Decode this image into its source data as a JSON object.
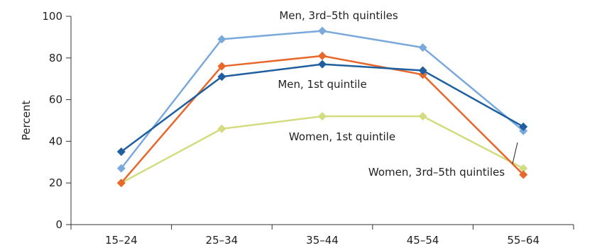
{
  "chart_data": {
    "type": "line",
    "categories": [
      "15–24",
      "25–34",
      "35–44",
      "45–54",
      "55–64"
    ],
    "ylabel": "Percent",
    "xlabel": "",
    "ylim": [
      0,
      100
    ],
    "yticks": [
      0,
      20,
      40,
      60,
      80,
      100
    ],
    "grid": false,
    "legend": "none (series labeled directly on plot)",
    "series": [
      {
        "name": "Men, 3rd–5th quintiles",
        "color": "#7aa9dc",
        "values": [
          27,
          89,
          93,
          85,
          45
        ]
      },
      {
        "name": "Women, 3rd–5th quintiles",
        "color": "#e8672a",
        "values": [
          20,
          76,
          81,
          72,
          24
        ]
      },
      {
        "name": "Men, 1st quintile",
        "color": "#1f5fa0",
        "values": [
          35,
          71,
          77,
          74,
          47
        ]
      },
      {
        "name": "Women, 1st quintile",
        "color": "#d4dc80",
        "values": [
          20,
          46,
          52,
          52,
          27
        ]
      }
    ]
  }
}
